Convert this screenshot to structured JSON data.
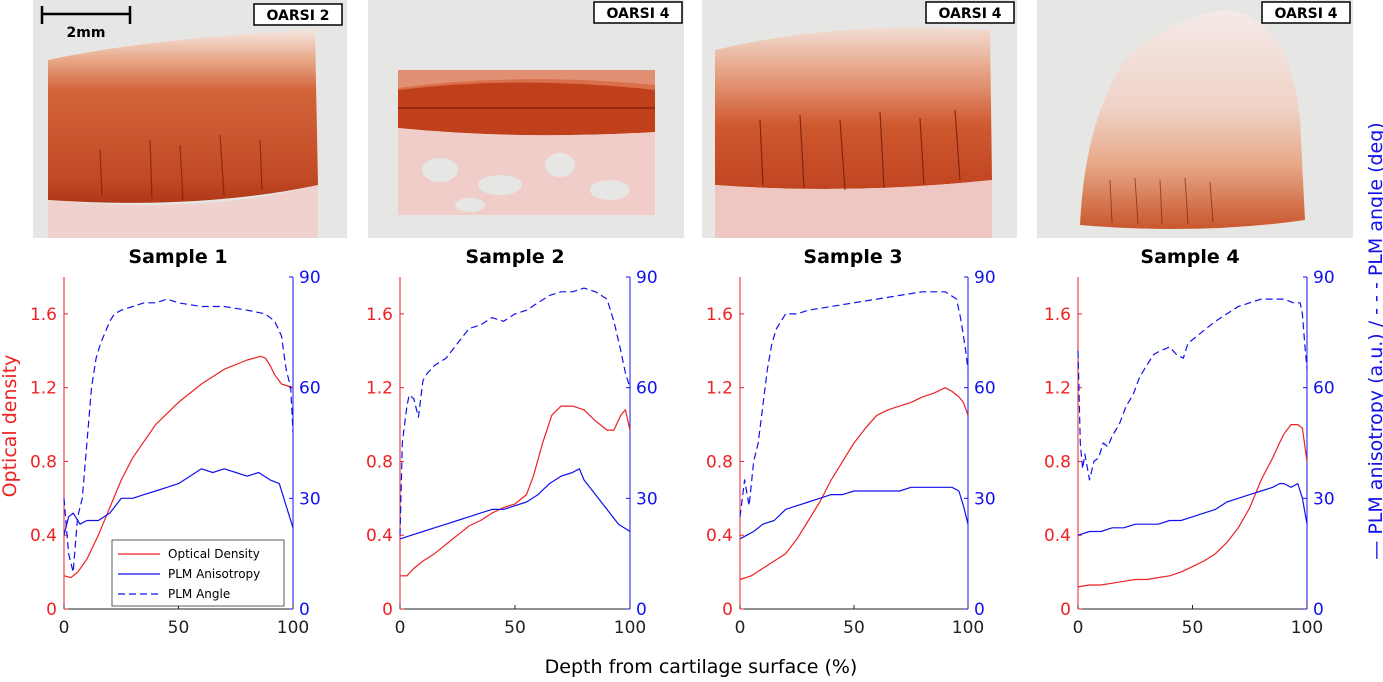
{
  "figure": {
    "xlabel": "Depth from cartilage surface (%)",
    "ylabel_left": "Optical density",
    "ylabel_right": "— PLM anisotropy (a.u.) / - - - PLM angle (deg)",
    "scale_bar": "2mm",
    "colors": {
      "optical_density": "#ee2222",
      "plm": "#1111ee"
    }
  },
  "legend": [
    "Optical Density",
    "PLM Anisotropy",
    "PLM Angle"
  ],
  "chart_data": [
    {
      "type": "line",
      "title": "Sample 1",
      "grade": "OARSI 2",
      "xlim": [
        0,
        100
      ],
      "x_ticks": [
        0,
        50,
        100
      ],
      "ylim_left": [
        0,
        1.8
      ],
      "y_ticks_left": [
        0,
        0.4,
        0.8,
        1.2,
        1.6
      ],
      "ylim_right": [
        0,
        90
      ],
      "y_ticks_right": [
        0,
        30,
        60,
        90
      ],
      "series": [
        {
          "name": "Optical Density",
          "axis": "left",
          "style": "solid",
          "x": [
            0,
            3,
            6,
            10,
            15,
            20,
            25,
            30,
            40,
            50,
            60,
            70,
            80,
            86,
            88,
            90,
            92,
            95,
            100
          ],
          "y": [
            0.18,
            0.17,
            0.2,
            0.27,
            0.4,
            0.55,
            0.7,
            0.82,
            1.0,
            1.12,
            1.22,
            1.3,
            1.35,
            1.37,
            1.36,
            1.32,
            1.27,
            1.22,
            1.2
          ]
        },
        {
          "name": "PLM Anisotropy",
          "axis": "right",
          "style": "solid",
          "x": [
            0,
            2,
            4,
            7,
            10,
            15,
            20,
            25,
            30,
            35,
            40,
            45,
            50,
            55,
            60,
            65,
            70,
            75,
            80,
            85,
            90,
            94,
            97,
            100
          ],
          "y": [
            20,
            25,
            26,
            23,
            24,
            24,
            26,
            30,
            30,
            31,
            32,
            33,
            34,
            36,
            38,
            37,
            38,
            37,
            36,
            37,
            35,
            34,
            28,
            22
          ]
        },
        {
          "name": "PLM Angle",
          "axis": "right",
          "style": "dashed",
          "x": [
            0,
            2,
            4,
            5,
            6,
            8,
            10,
            12,
            14,
            16,
            18,
            20,
            22,
            25,
            30,
            35,
            40,
            45,
            50,
            60,
            70,
            80,
            88,
            92,
            95,
            97,
            99,
            100
          ],
          "y": [
            30,
            15,
            10,
            18,
            25,
            30,
            45,
            60,
            68,
            72,
            75,
            78,
            80,
            81,
            82,
            83,
            83,
            84,
            83,
            82,
            82,
            81,
            80,
            78,
            74,
            65,
            60,
            48
          ]
        }
      ]
    },
    {
      "type": "line",
      "title": "Sample 2",
      "grade": "OARSI 4",
      "xlim": [
        0,
        100
      ],
      "x_ticks": [
        0,
        50,
        100
      ],
      "ylim_left": [
        0,
        1.8
      ],
      "y_ticks_left": [
        0,
        0.4,
        0.8,
        1.2,
        1.6
      ],
      "ylim_right": [
        0,
        90
      ],
      "y_ticks_right": [
        0,
        30,
        60,
        90
      ],
      "series": [
        {
          "name": "Optical Density",
          "axis": "left",
          "style": "solid",
          "x": [
            0,
            3,
            6,
            10,
            15,
            20,
            25,
            30,
            35,
            40,
            45,
            50,
            55,
            58,
            62,
            66,
            70,
            75,
            80,
            85,
            90,
            93,
            96,
            98,
            100
          ],
          "y": [
            0.18,
            0.18,
            0.22,
            0.26,
            0.3,
            0.35,
            0.4,
            0.45,
            0.48,
            0.52,
            0.55,
            0.57,
            0.62,
            0.72,
            0.9,
            1.05,
            1.1,
            1.1,
            1.08,
            1.02,
            0.97,
            0.97,
            1.05,
            1.08,
            0.97
          ]
        },
        {
          "name": "PLM Anisotropy",
          "axis": "right",
          "style": "solid",
          "x": [
            0,
            5,
            10,
            15,
            20,
            25,
            30,
            35,
            40,
            45,
            50,
            55,
            60,
            65,
            70,
            75,
            78,
            80,
            85,
            90,
            95,
            100
          ],
          "y": [
            19,
            20,
            21,
            22,
            23,
            24,
            25,
            26,
            27,
            27,
            28,
            29,
            31,
            34,
            36,
            37,
            38,
            35,
            31,
            27,
            23,
            21
          ]
        },
        {
          "name": "PLM Angle",
          "axis": "right",
          "style": "dashed",
          "x": [
            0,
            1,
            2,
            3,
            4,
            6,
            8,
            10,
            12,
            15,
            20,
            25,
            30,
            35,
            40,
            45,
            50,
            55,
            60,
            65,
            70,
            75,
            80,
            85,
            90,
            93,
            96,
            98,
            100
          ],
          "y": [
            20,
            45,
            50,
            55,
            58,
            57,
            52,
            62,
            64,
            66,
            68,
            72,
            76,
            77,
            79,
            78,
            80,
            81,
            83,
            85,
            86,
            86,
            87,
            86,
            84,
            78,
            70,
            64,
            60
          ]
        }
      ]
    },
    {
      "type": "line",
      "title": "Sample 3",
      "grade": "OARSI 4",
      "xlim": [
        0,
        100
      ],
      "x_ticks": [
        0,
        50,
        100
      ],
      "ylim_left": [
        0,
        1.8
      ],
      "y_ticks_left": [
        0,
        0.4,
        0.8,
        1.2,
        1.6
      ],
      "ylim_right": [
        0,
        90
      ],
      "y_ticks_right": [
        0,
        30,
        60,
        90
      ],
      "series": [
        {
          "name": "Optical Density",
          "axis": "left",
          "style": "solid",
          "x": [
            0,
            5,
            10,
            15,
            20,
            25,
            30,
            35,
            40,
            45,
            50,
            55,
            60,
            65,
            70,
            75,
            80,
            85,
            90,
            93,
            96,
            98,
            100
          ],
          "y": [
            0.16,
            0.18,
            0.22,
            0.26,
            0.3,
            0.38,
            0.48,
            0.58,
            0.7,
            0.8,
            0.9,
            0.98,
            1.05,
            1.08,
            1.1,
            1.12,
            1.15,
            1.17,
            1.2,
            1.18,
            1.15,
            1.12,
            1.05
          ]
        },
        {
          "name": "PLM Anisotropy",
          "axis": "right",
          "style": "solid",
          "x": [
            0,
            3,
            6,
            10,
            15,
            20,
            25,
            30,
            35,
            40,
            45,
            50,
            55,
            60,
            65,
            70,
            75,
            80,
            85,
            90,
            93,
            96,
            98,
            100
          ],
          "y": [
            19,
            20,
            21,
            23,
            24,
            27,
            28,
            29,
            30,
            31,
            31,
            32,
            32,
            32,
            32,
            32,
            33,
            33,
            33,
            33,
            33,
            32,
            28,
            23
          ]
        },
        {
          "name": "PLM Angle",
          "axis": "right",
          "style": "dashed",
          "x": [
            0,
            2,
            4,
            6,
            8,
            10,
            12,
            14,
            16,
            18,
            20,
            25,
            30,
            40,
            50,
            60,
            70,
            80,
            85,
            90,
            95,
            97,
            99,
            100
          ],
          "y": [
            25,
            35,
            28,
            40,
            45,
            55,
            65,
            72,
            76,
            78,
            80,
            80,
            81,
            82,
            83,
            84,
            85,
            86,
            86,
            86,
            84,
            78,
            70,
            65
          ]
        }
      ]
    },
    {
      "type": "line",
      "title": "Sample 4",
      "grade": "OARSI 4",
      "xlim": [
        0,
        100
      ],
      "x_ticks": [
        0,
        50,
        100
      ],
      "ylim_left": [
        0,
        1.8
      ],
      "y_ticks_left": [
        0,
        0.4,
        0.8,
        1.2,
        1.6
      ],
      "ylim_right": [
        0,
        90
      ],
      "y_ticks_right": [
        0,
        30,
        60,
        90
      ],
      "series": [
        {
          "name": "Optical Density",
          "axis": "left",
          "style": "solid",
          "x": [
            0,
            5,
            10,
            15,
            20,
            25,
            30,
            35,
            40,
            45,
            50,
            55,
            60,
            65,
            70,
            75,
            80,
            85,
            88,
            90,
            93,
            96,
            98,
            100
          ],
          "y": [
            0.12,
            0.13,
            0.13,
            0.14,
            0.15,
            0.16,
            0.16,
            0.17,
            0.18,
            0.2,
            0.23,
            0.26,
            0.3,
            0.36,
            0.44,
            0.55,
            0.7,
            0.82,
            0.9,
            0.95,
            1.0,
            1.0,
            0.98,
            0.8
          ]
        },
        {
          "name": "PLM Anisotropy",
          "axis": "right",
          "style": "solid",
          "x": [
            0,
            5,
            10,
            15,
            20,
            25,
            30,
            35,
            40,
            45,
            50,
            55,
            60,
            65,
            70,
            75,
            80,
            85,
            88,
            90,
            93,
            96,
            98,
            100
          ],
          "y": [
            20,
            21,
            21,
            22,
            22,
            23,
            23,
            23,
            24,
            24,
            25,
            26,
            27,
            29,
            30,
            31,
            32,
            33,
            34,
            34,
            33,
            34,
            30,
            23
          ]
        },
        {
          "name": "PLM Angle",
          "axis": "right",
          "style": "dashed",
          "x": [
            0,
            1,
            2,
            3,
            5,
            7,
            9,
            11,
            13,
            15,
            18,
            21,
            24,
            27,
            30,
            33,
            36,
            40,
            43,
            46,
            48,
            52,
            56,
            60,
            65,
            70,
            75,
            80,
            85,
            90,
            94,
            97,
            98,
            99,
            100
          ],
          "y": [
            70,
            45,
            38,
            42,
            35,
            40,
            41,
            45,
            44,
            47,
            50,
            55,
            58,
            63,
            66,
            69,
            70,
            71,
            69,
            68,
            72,
            74,
            76,
            78,
            80,
            82,
            83,
            84,
            84,
            84,
            83,
            83,
            80,
            72,
            65
          ]
        }
      ]
    }
  ]
}
